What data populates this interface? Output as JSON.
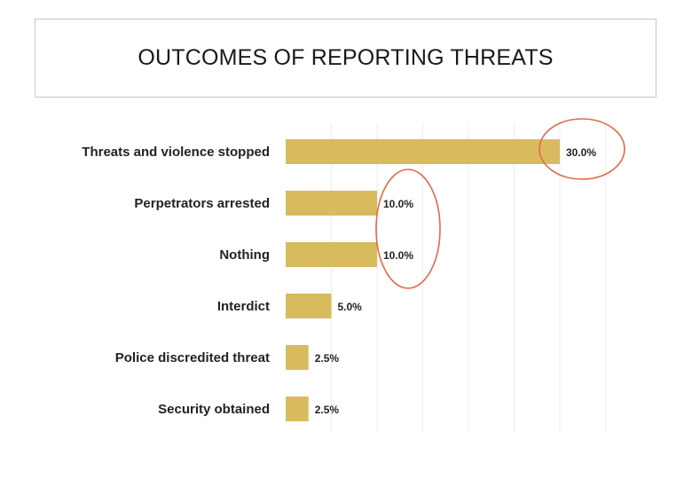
{
  "slide": {
    "title": "OUTCOMES OF REPORTING THREATS"
  },
  "colors": {
    "bar": "#D9BB5F",
    "highlight_ellipse": "#E4694B",
    "gridline": "#EDEDED"
  },
  "chart_data": {
    "type": "bar",
    "orientation": "horizontal",
    "title": "OUTCOMES OF REPORTING THREATS",
    "xlabel": "",
    "ylabel": "",
    "xlim": [
      0,
      35
    ],
    "grid": true,
    "categories": [
      "Threats and violence stopped",
      "Perpetrators arrested",
      "Nothing",
      "Interdict",
      "Police discredited threat",
      "Security obtained"
    ],
    "values": [
      30.0,
      10.0,
      10.0,
      5.0,
      2.5,
      2.5
    ],
    "value_labels": [
      "30.0%",
      "10.0%",
      "10.0%",
      "5.0%",
      "2.5%",
      "2.5%"
    ],
    "annotations": [
      {
        "shape": "ellipse",
        "highlights": [
          "Threats and violence stopped"
        ]
      },
      {
        "shape": "ellipse",
        "highlights": [
          "Perpetrators arrested",
          "Nothing"
        ]
      }
    ]
  }
}
